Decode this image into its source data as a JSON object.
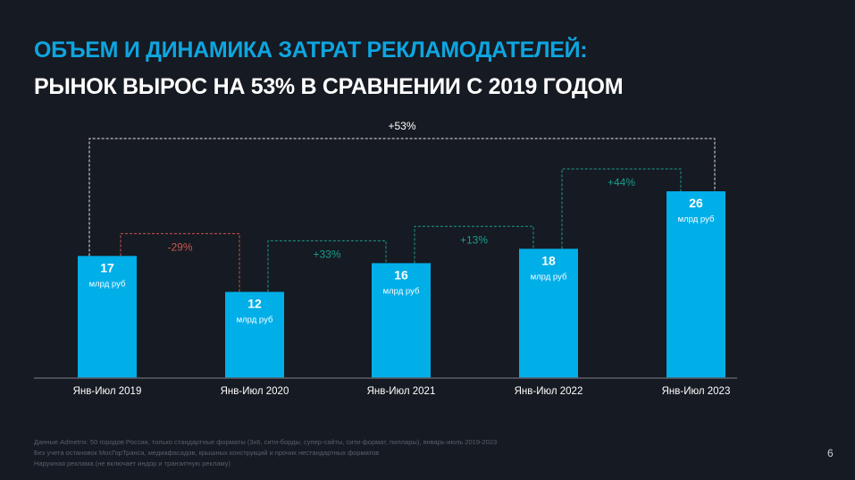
{
  "header": {
    "title": "ОБЪЕМ И ДИНАМИКА ЗАТРАТ РЕКЛАМОДАТЕЛЕЙ:",
    "subtitle": "РЫНОК ВЫРОС НА 53% В СРАВНЕНИИ С 2019 ГОДОМ"
  },
  "chart_data": {
    "type": "bar",
    "title": "ОБЪЕМ И ДИНАМИКА ЗАТРАТ РЕКЛАМОДАТЕЛЕЙ",
    "categories": [
      "Янв-Июл 2019",
      "Янв-Июл 2020",
      "Янв-Июл 2021",
      "Янв-Июл 2022",
      "Янв-Июл 2023"
    ],
    "values": [
      17,
      12,
      16,
      18,
      26
    ],
    "value_labels": [
      "17",
      "12",
      "16",
      "18",
      "26"
    ],
    "unit": "млрд руб",
    "ylim": [
      0,
      30
    ],
    "grid": false,
    "changes": [
      {
        "from": 0,
        "to": 1,
        "label": "-29%",
        "color": "#c9574c"
      },
      {
        "from": 1,
        "to": 2,
        "label": "+33%",
        "color": "#1a9c8c"
      },
      {
        "from": 2,
        "to": 3,
        "label": "+13%",
        "color": "#1a9c8c"
      },
      {
        "from": 3,
        "to": 4,
        "label": "+44%",
        "color": "#1a9c8c"
      }
    ],
    "total_change": {
      "from": 0,
      "to": 4,
      "label": "+53%",
      "color": "#e8e8e8"
    },
    "bar_color": "#00aee8"
  },
  "footnotes": [
    "Данные Admetrix: 50 городов России, только стандартные форматы (3х6, сити-борды, супер-сайты, сити-формат, пиллары), январь-июль 2019-2023",
    "Без учета остановок МосГорТранса, медиафасадов, крышных конструкций и прочих нестандартных форматов",
    "Наружная реклама (не включает индор и транзитную рекламу)"
  ],
  "page_number": "6"
}
